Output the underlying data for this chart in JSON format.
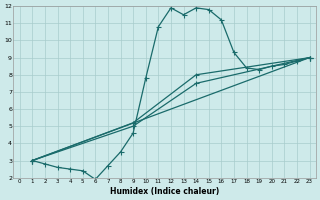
{
  "background_color": "#ceeaea",
  "grid_color": "#a8cccc",
  "line_color": "#1a6b6b",
  "xlabel": "Humidex (Indice chaleur)",
  "xlim": [
    -0.5,
    23.5
  ],
  "ylim": [
    2,
    12
  ],
  "yticks": [
    2,
    3,
    4,
    5,
    6,
    7,
    8,
    9,
    10,
    11,
    12
  ],
  "xticks": [
    0,
    1,
    2,
    3,
    4,
    5,
    6,
    7,
    8,
    9,
    10,
    11,
    12,
    13,
    14,
    15,
    16,
    17,
    18,
    19,
    20,
    21,
    22,
    23
  ],
  "line1_x": [
    1,
    2,
    3,
    4,
    5,
    6,
    7,
    8,
    9,
    10,
    11,
    12,
    13,
    14,
    15,
    16,
    17,
    18,
    19,
    20,
    21,
    22,
    23
  ],
  "line1_y": [
    3.0,
    2.8,
    2.6,
    2.5,
    2.4,
    1.9,
    2.7,
    3.5,
    4.6,
    7.8,
    10.8,
    11.9,
    11.5,
    11.9,
    11.8,
    11.2,
    9.3,
    8.4,
    8.3,
    8.5,
    8.6,
    8.8,
    9.0
  ],
  "line2_x": [
    1,
    23
  ],
  "line2_y": [
    3.0,
    9.0
  ],
  "line3_x": [
    1,
    9,
    14,
    23
  ],
  "line3_y": [
    3.0,
    5.0,
    7.5,
    9.0
  ],
  "line4_x": [
    1,
    9,
    14,
    23
  ],
  "line4_y": [
    3.0,
    5.2,
    8.0,
    9.0
  ]
}
